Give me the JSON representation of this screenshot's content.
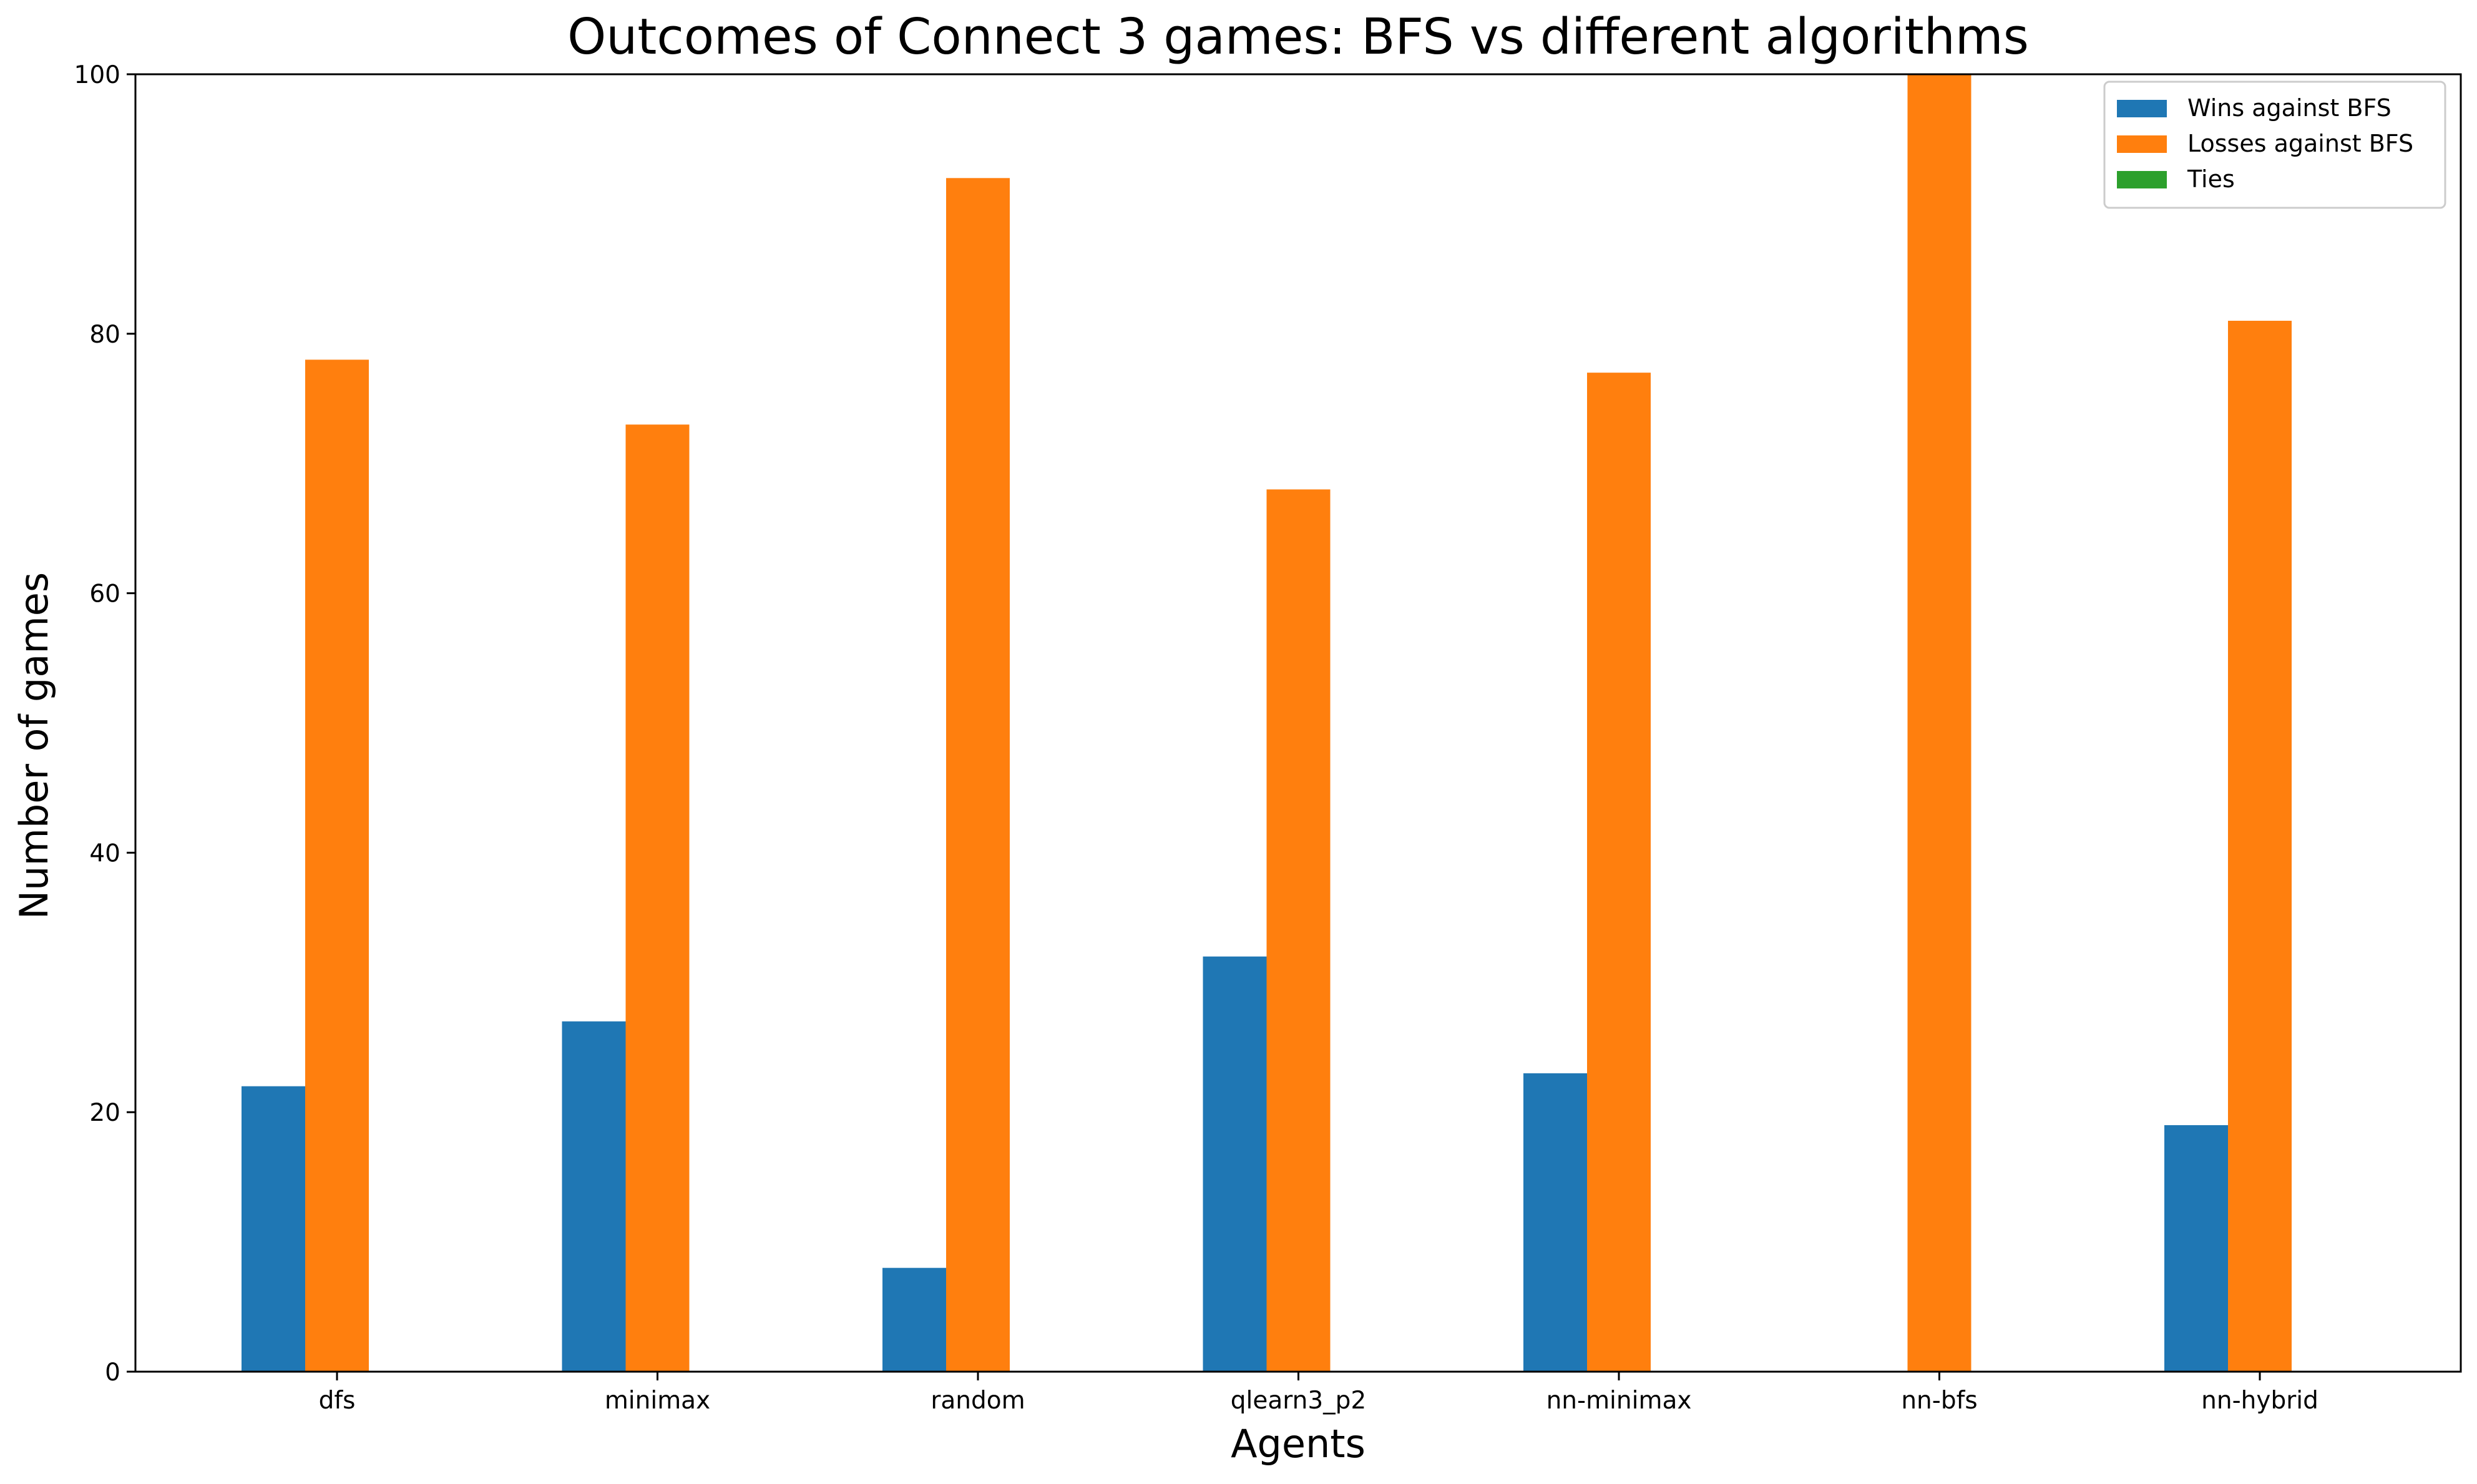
{
  "chart_data": {
    "type": "bar",
    "title": "Outcomes of Connect 3 games: BFS vs different algorithms",
    "xlabel": "Agents",
    "ylabel": "Number of games",
    "categories": [
      "dfs",
      "minimax",
      "random",
      "qlearn3_p2",
      "nn-minimax",
      "nn-bfs",
      "nn-hybrid"
    ],
    "series": [
      {
        "name": "Wins against BFS",
        "color": "#1f77b4",
        "values": [
          22,
          27,
          8,
          32,
          23,
          0,
          19
        ]
      },
      {
        "name": "Losses against BFS",
        "color": "#ff7f0e",
        "values": [
          78,
          73,
          92,
          68,
          77,
          100,
          81
        ]
      },
      {
        "name": "Ties",
        "color": "#2ca02c",
        "values": [
          0,
          0,
          0,
          0,
          0,
          0,
          0
        ]
      }
    ],
    "ylim": [
      0,
      100
    ],
    "yticks": [
      0,
      20,
      40,
      60,
      80,
      100
    ],
    "grid": false,
    "legend_position": "top-right"
  }
}
